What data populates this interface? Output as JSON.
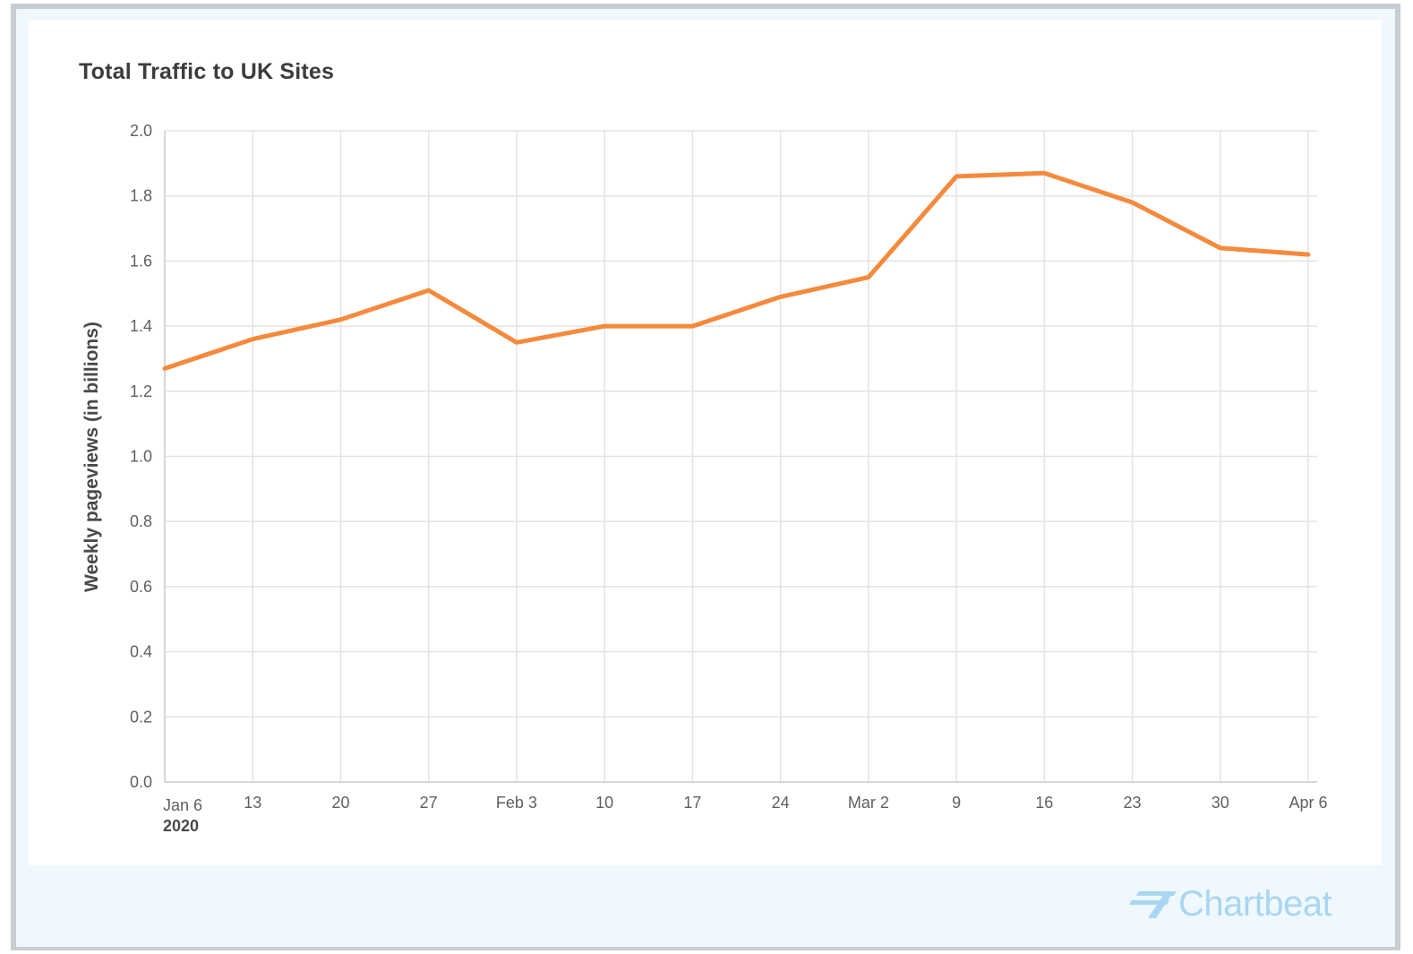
{
  "page": {
    "title": "Total Traffic to UK Sites",
    "brand": "Chartbeat"
  },
  "colors": {
    "line": "#f58a3c",
    "grid": "#e3e3e3",
    "axis": "#d6d6d6",
    "brand": "#a9d6f1",
    "background": "#eff8fd"
  },
  "chart_data": {
    "type": "line",
    "title": "Total Traffic to UK Sites",
    "xlabel": "",
    "ylabel": "Weekly pageviews (in billions)",
    "x": [
      "2020-01-06",
      "2020-01-13",
      "2020-01-20",
      "2020-01-27",
      "2020-02-03",
      "2020-02-10",
      "2020-02-17",
      "2020-02-24",
      "2020-03-02",
      "2020-03-09",
      "2020-03-16",
      "2020-03-23",
      "2020-03-30",
      "2020-04-06"
    ],
    "x_tick_labels": [
      "Jan 6",
      "13",
      "20",
      "27",
      "Feb 3",
      "10",
      "17",
      "24",
      "Mar 2",
      "9",
      "16",
      "23",
      "30",
      "Apr 6"
    ],
    "x_year_label": "2020",
    "y_tick_labels": [
      "0.0",
      "0.2",
      "0.4",
      "0.6",
      "0.8",
      "1.0",
      "1.2",
      "1.4",
      "1.6",
      "1.8",
      "2.0"
    ],
    "ylim": [
      0,
      2.0
    ],
    "grid": true,
    "legend": "none",
    "series": [
      {
        "values": [
          1.27,
          1.36,
          1.42,
          1.51,
          1.35,
          1.4,
          1.4,
          1.49,
          1.55,
          1.86,
          1.87,
          1.78,
          1.64,
          1.62
        ]
      }
    ]
  }
}
